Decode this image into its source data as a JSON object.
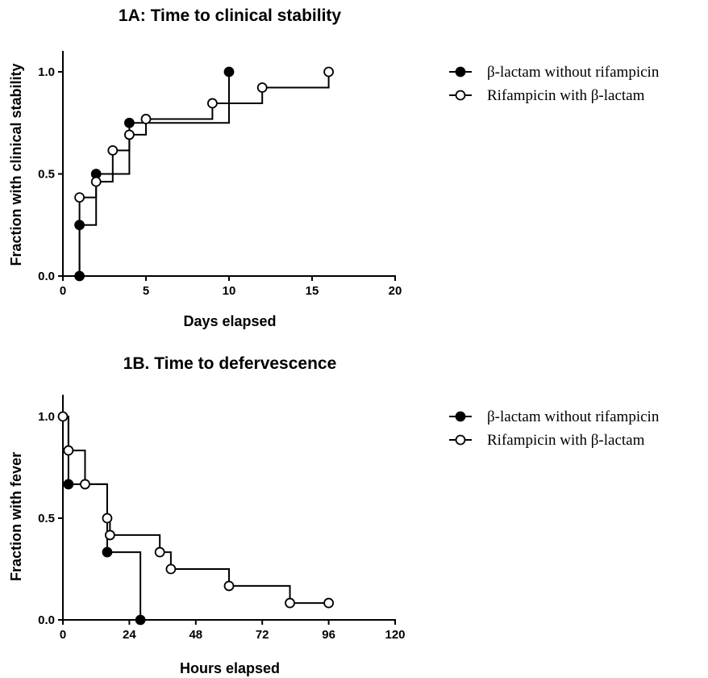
{
  "chart_data": [
    {
      "type": "line",
      "style": "kaplan-meier-step",
      "title": "1A: Time to clinical stability",
      "xlabel": "Days elapsed",
      "ylabel": "Fraction with clinical stability",
      "xlim": [
        0,
        20
      ],
      "ylim": [
        0,
        1.0
      ],
      "xticks": [
        "0",
        "5",
        "10",
        "15",
        "20"
      ],
      "yticks": [
        "0.0",
        "0.5",
        "1.0"
      ],
      "grid": false,
      "legend_position": "right",
      "series": [
        {
          "name": "β-lactam without rifampicin",
          "marker": "filled-circle",
          "x": [
            1,
            1,
            2,
            4,
            10
          ],
          "y": [
            0,
            0.25,
            0.5,
            0.75,
            1.0
          ]
        },
        {
          "name": "Rifampicin with β-lactam",
          "marker": "open-circle",
          "x": [
            1,
            2,
            3,
            4,
            5,
            9,
            12,
            16
          ],
          "y": [
            0.385,
            0.462,
            0.615,
            0.692,
            0.769,
            0.846,
            0.923,
            1.0
          ]
        }
      ]
    },
    {
      "type": "line",
      "style": "kaplan-meier-step",
      "title": "1B. Time to defervescence",
      "xlabel": "Hours elapsed",
      "ylabel": "Fraction with fever",
      "xlim": [
        0,
        120
      ],
      "ylim": [
        0,
        1.0
      ],
      "xticks": [
        "0",
        "24",
        "48",
        "72",
        "96",
        "120"
      ],
      "yticks": [
        "0.0",
        "0.5",
        "1.0"
      ],
      "grid": false,
      "legend_position": "right",
      "series": [
        {
          "name": "β-lactam without rifampicin",
          "marker": "filled-circle",
          "x": [
            0,
            2,
            16,
            28
          ],
          "y": [
            1.0,
            0.667,
            0.333,
            0
          ]
        },
        {
          "name": "Rifampicin with β-lactam",
          "marker": "open-circle",
          "x": [
            0,
            2,
            8,
            16,
            17,
            35,
            39,
            60,
            82,
            96
          ],
          "y": [
            1.0,
            0.833,
            0.667,
            0.5,
            0.417,
            0.333,
            0.25,
            0.167,
            0.083,
            0.083
          ]
        }
      ]
    }
  ]
}
